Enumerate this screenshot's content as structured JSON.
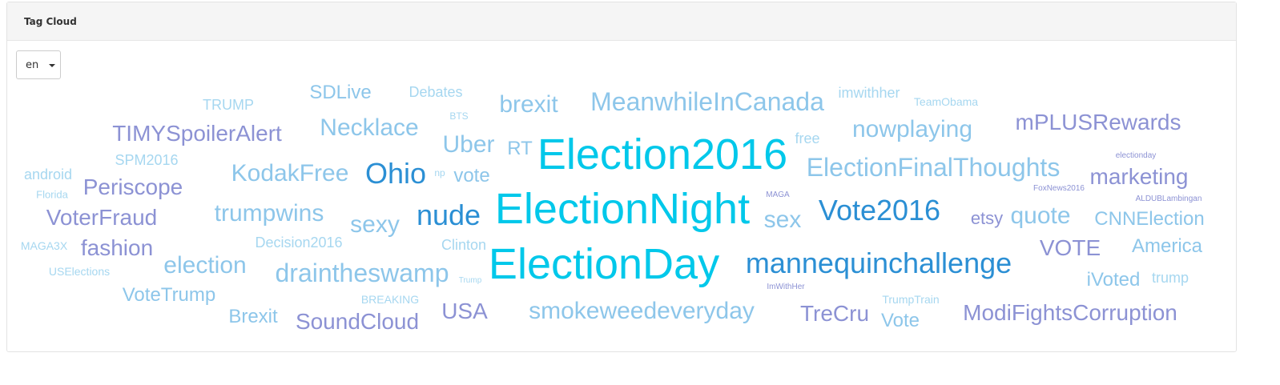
{
  "panel": {
    "title": "Tag Cloud"
  },
  "language_select": {
    "value": "en"
  },
  "colors": {
    "cyan": "#00c8ea",
    "blue": "#2b8fd4",
    "light_blue": "#8dc6ea",
    "pale_blue": "#a6d7f0",
    "periwinkle": "#8c92d4",
    "steel_blue": "#6fb0e0"
  },
  "tags": [
    {
      "text": "Election2016",
      "color": "cyan"
    },
    {
      "text": "ElectionNight",
      "color": "cyan"
    },
    {
      "text": "ElectionDay",
      "color": "cyan"
    },
    {
      "text": "mannequinchallenge",
      "color": "blue"
    },
    {
      "text": "Vote2016",
      "color": "blue"
    },
    {
      "text": "Ohio",
      "color": "blue"
    },
    {
      "text": "nude",
      "color": "blue"
    },
    {
      "text": "MeanwhileInCanada",
      "color": "light_blue"
    },
    {
      "text": "ElectionFinalThoughts",
      "color": "light_blue"
    },
    {
      "text": "nowplaying",
      "color": "light_blue"
    },
    {
      "text": "smokeweedeveryday",
      "color": "light_blue"
    },
    {
      "text": "draintheswamp",
      "color": "light_blue"
    },
    {
      "text": "KodakFree",
      "color": "light_blue"
    },
    {
      "text": "trumpwins",
      "color": "light_blue"
    },
    {
      "text": "Necklace",
      "color": "light_blue"
    },
    {
      "text": "brexit",
      "color": "light_blue"
    },
    {
      "text": "Uber",
      "color": "light_blue"
    },
    {
      "text": "election",
      "color": "light_blue"
    },
    {
      "text": "sexy",
      "color": "light_blue"
    },
    {
      "text": "sex",
      "color": "light_blue"
    },
    {
      "text": "quote",
      "color": "light_blue"
    },
    {
      "text": "ModiFightsCorruption",
      "color": "periwinkle"
    },
    {
      "text": "mPLUSRewards",
      "color": "periwinkle"
    },
    {
      "text": "TIMYSpoilerAlert",
      "color": "periwinkle"
    },
    {
      "text": "marketing",
      "color": "periwinkle"
    },
    {
      "text": "SoundCloud",
      "color": "periwinkle"
    },
    {
      "text": "VoterFraud",
      "color": "periwinkle"
    },
    {
      "text": "TreCru",
      "color": "periwinkle"
    },
    {
      "text": "VOTE",
      "color": "periwinkle"
    },
    {
      "text": "USA",
      "color": "periwinkle"
    },
    {
      "text": "fashion",
      "color": "periwinkle"
    },
    {
      "text": "Periscope",
      "color": "periwinkle"
    },
    {
      "text": "etsy",
      "color": "periwinkle"
    },
    {
      "text": "CNNElection",
      "color": "light_blue"
    },
    {
      "text": "SDLive",
      "color": "light_blue"
    },
    {
      "text": "America",
      "color": "light_blue"
    },
    {
      "text": "VoteTrump",
      "color": "light_blue"
    },
    {
      "text": "iVoted",
      "color": "light_blue"
    },
    {
      "text": "Brexit",
      "color": "light_blue"
    },
    {
      "text": "Vote",
      "color": "light_blue"
    },
    {
      "text": "vote",
      "color": "light_blue"
    },
    {
      "text": "RT",
      "color": "light_blue"
    },
    {
      "text": "Decision2016",
      "color": "pale_blue"
    },
    {
      "text": "Debates",
      "color": "pale_blue"
    },
    {
      "text": "TRUMP",
      "color": "pale_blue"
    },
    {
      "text": "SPM2016",
      "color": "pale_blue"
    },
    {
      "text": "android",
      "color": "pale_blue"
    },
    {
      "text": "Clinton",
      "color": "pale_blue"
    },
    {
      "text": "trump",
      "color": "pale_blue"
    },
    {
      "text": "free",
      "color": "pale_blue"
    },
    {
      "text": "imwithher",
      "color": "pale_blue"
    },
    {
      "text": "TeamObama",
      "color": "pale_blue"
    },
    {
      "text": "TrumpTrain",
      "color": "pale_blue"
    },
    {
      "text": "BREAKING",
      "color": "pale_blue"
    },
    {
      "text": "MAGA3X",
      "color": "pale_blue"
    },
    {
      "text": "USElections",
      "color": "pale_blue"
    },
    {
      "text": "Florida",
      "color": "pale_blue"
    },
    {
      "text": "BTS",
      "color": "pale_blue"
    },
    {
      "text": "np",
      "color": "pale_blue"
    },
    {
      "text": "Trump",
      "color": "pale_blue"
    },
    {
      "text": "MAGA",
      "color": "periwinkle"
    },
    {
      "text": "ImWithHer",
      "color": "periwinkle"
    },
    {
      "text": "electionday",
      "color": "periwinkle"
    },
    {
      "text": "FoxNews2016",
      "color": "periwinkle"
    },
    {
      "text": "ALDUBLambingan",
      "color": "periwinkle"
    }
  ]
}
